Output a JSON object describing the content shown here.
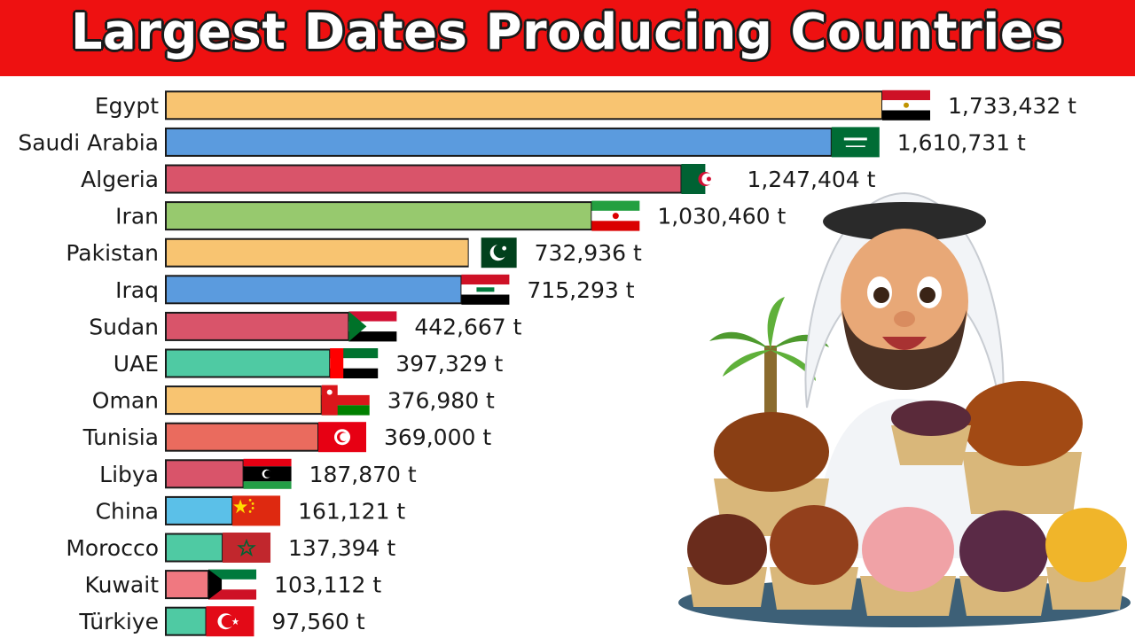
{
  "title": "Largest Dates Producing Countries",
  "unit": "t",
  "chart_data": {
    "type": "bar",
    "orientation": "horizontal",
    "categories": [
      "Egypt",
      "Saudi Arabia",
      "Algeria",
      "Iran",
      "Pakistan",
      "Iraq",
      "Sudan",
      "UAE",
      "Oman",
      "Tunisia",
      "Libya",
      "China",
      "Morocco",
      "Kuwait",
      "Türkiye"
    ],
    "values": [
      1733432,
      1610731,
      1247404,
      1030460,
      732936,
      715293,
      442667,
      397329,
      376980,
      369000,
      187870,
      161121,
      137394,
      103112,
      97560
    ],
    "value_labels": [
      "1,733,432 t",
      "1,610,731 t",
      "1,247,404 t",
      "1,030,460 t",
      "732,936 t",
      "715,293 t",
      "442,667 t",
      "397,329 t",
      "376,980 t",
      "369,000 t",
      "187,870 t",
      "161,121 t",
      "137,394 t",
      "103,112 t",
      "97,560 t"
    ],
    "bar_colors": [
      "#f8c471",
      "#5b9bde",
      "#d9546a",
      "#97c96e",
      "#f8c471",
      "#5b9bde",
      "#d9546a",
      "#4fcaa3",
      "#f8c471",
      "#ea6b5e",
      "#d9546a",
      "#5bc0e8",
      "#4fcaa3",
      "#f07880",
      "#4fcaa3"
    ],
    "flags": [
      "egypt",
      "saudi-arabia",
      "algeria",
      "iran",
      "pakistan",
      "iraq",
      "sudan",
      "uae",
      "oman",
      "tunisia",
      "libya",
      "china",
      "morocco",
      "kuwait",
      "turkiye"
    ],
    "xlabel": "",
    "ylabel": "",
    "grid": false,
    "legend": "none"
  }
}
